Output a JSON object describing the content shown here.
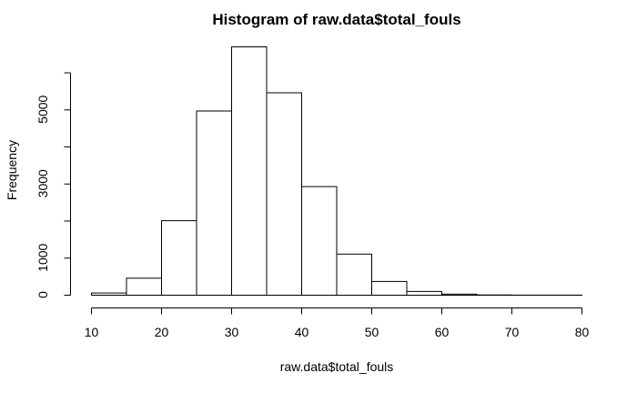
{
  "chart_data": {
    "type": "bar",
    "title": "Histogram of raw.data$total_fouls",
    "xlabel": "raw.data$total_fouls",
    "ylabel": "Frequency",
    "bin_edges": [
      10,
      15,
      20,
      25,
      30,
      35,
      40,
      45,
      50,
      55,
      60,
      65,
      70,
      75,
      80
    ],
    "values": [
      60,
      460,
      2010,
      4970,
      6700,
      5460,
      2930,
      1110,
      370,
      100,
      30,
      8,
      3,
      2
    ],
    "xlim": [
      10,
      80
    ],
    "ylim": [
      0,
      6700
    ],
    "x_ticks": [
      10,
      20,
      30,
      40,
      50,
      60,
      70,
      80
    ],
    "y_ticks": [
      0,
      1000,
      3000,
      5000
    ],
    "grid": false,
    "colors": {
      "bar_fill": "#ffffff",
      "bar_stroke": "#000000"
    }
  }
}
